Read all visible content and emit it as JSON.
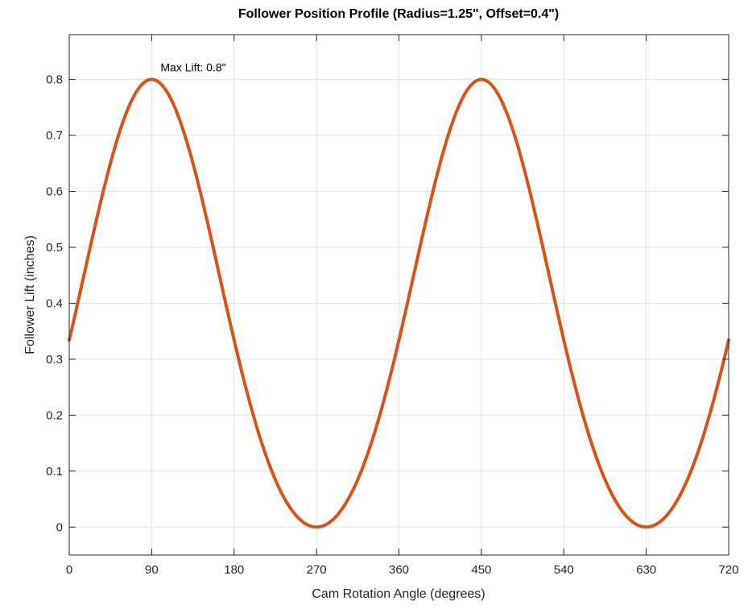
{
  "chart_data": {
    "type": "line",
    "title": "Follower Position Profile (Radius=1.25\", Offset=0.4\")",
    "xlabel": "Cam Rotation Angle (degrees)",
    "ylabel": "Follower Lift (inches)",
    "xlim": [
      0,
      720
    ],
    "ylim": [
      -0.05,
      0.88
    ],
    "xticks": [
      0,
      90,
      180,
      270,
      360,
      450,
      540,
      630,
      720
    ],
    "yticks": [
      0,
      0.1,
      0.2,
      0.3,
      0.4,
      0.5,
      0.6,
      0.7,
      0.8
    ],
    "ytick_labels": [
      "0",
      "0.1",
      "0.2",
      "0.3",
      "0.4",
      "0.5",
      "0.6",
      "0.7",
      "0.8"
    ],
    "grid": true,
    "legend": null,
    "series": [
      {
        "name": "Follower Lift",
        "color": "#D95319",
        "x": [
          0,
          30,
          60,
          90,
          120,
          150,
          180,
          210,
          240,
          270,
          300,
          330,
          360,
          390,
          420,
          450,
          480,
          510,
          540,
          570,
          600,
          630,
          660,
          690,
          720
        ],
        "values": [
          0.334,
          0.558,
          0.737,
          0.8,
          0.713,
          0.526,
          0.334,
          0.174,
          0.044,
          0.0,
          0.044,
          0.174,
          0.334,
          0.558,
          0.737,
          0.8,
          0.713,
          0.526,
          0.334,
          0.174,
          0.044,
          0.0,
          0.044,
          0.174,
          0.334
        ]
      }
    ],
    "annotations": [
      {
        "text": "Max Lift: 0.8\"",
        "x": 90,
        "y": 0.8
      }
    ],
    "params": {
      "radius": 1.25,
      "offset": 0.4
    }
  }
}
